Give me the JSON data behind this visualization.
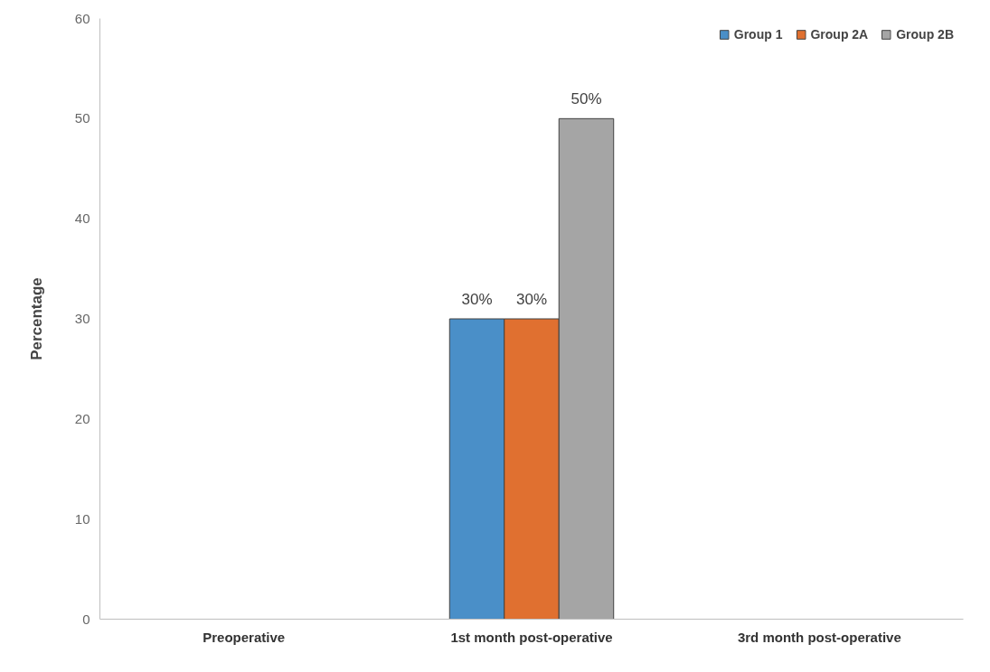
{
  "chart_data": {
    "type": "bar",
    "ylabel": "Percentage",
    "categories": [
      "Preoperative",
      "1st month post-operative",
      "3rd month post-operative"
    ],
    "series": [
      {
        "name": "Group 1",
        "color": "#4a8fc8",
        "values": [
          null,
          30,
          null
        ],
        "value_labels": [
          null,
          "30%",
          null
        ]
      },
      {
        "name": "Group 2A",
        "color": "#e07030",
        "values": [
          null,
          30,
          null
        ],
        "value_labels": [
          null,
          "30%",
          null
        ]
      },
      {
        "name": "Group 2B",
        "color": "#a5a5a5",
        "values": [
          null,
          50,
          null
        ],
        "value_labels": [
          null,
          "50%",
          null
        ]
      }
    ],
    "ylim": [
      0,
      60
    ],
    "yticks": [
      0,
      10,
      20,
      30,
      40,
      50,
      60
    ],
    "grid": false,
    "legend": "top right"
  }
}
